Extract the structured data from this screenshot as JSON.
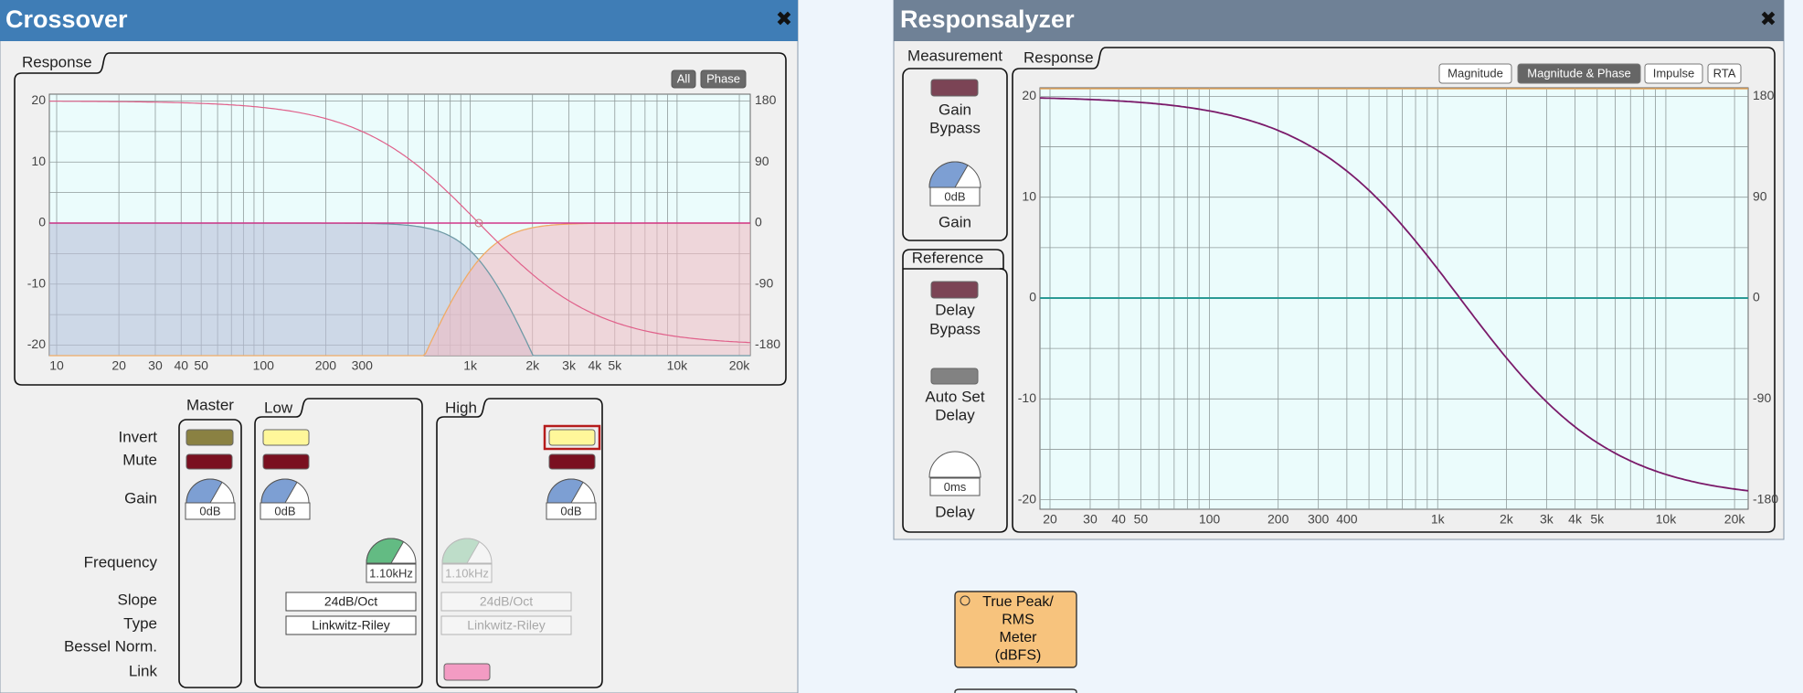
{
  "crossover": {
    "title": "Crossover",
    "close": "✖",
    "response": {
      "label": "Response",
      "buttons": [
        "All",
        "Phase"
      ],
      "y_left": [
        "20",
        "10",
        "0",
        "-10",
        "-20"
      ],
      "y_right": [
        "180",
        "90",
        "0",
        "-90",
        "-180"
      ],
      "x_labels": [
        "10",
        "20",
        "30",
        "40",
        "50",
        "100",
        "200",
        "300",
        "1k",
        "2k",
        "3k",
        "4k",
        "5k",
        "10k",
        "20k"
      ]
    },
    "row_labels": [
      "Invert",
      "Mute",
      "Gain",
      "Frequency",
      "Slope",
      "Type",
      "Bessel Norm.",
      "Link"
    ],
    "master": {
      "label": "Master",
      "gain": "0dB"
    },
    "low": {
      "label": "Low",
      "gain": "0dB",
      "frequency": "1.10kHz",
      "slope": "24dB/Oct",
      "type": "Linkwitz-Riley"
    },
    "high": {
      "label": "High",
      "gain": "0dB",
      "frequency": "1.10kHz",
      "slope": "24dB/Oct",
      "type": "Linkwitz-Riley"
    }
  },
  "responsalyzer": {
    "title": "Responsalyzer",
    "close": "✖",
    "measurement": {
      "label": "Measurement",
      "gain_bypass": [
        "Gain",
        "Bypass"
      ],
      "gain_value": "0dB",
      "gain": "Gain"
    },
    "reference": {
      "label": "Reference",
      "delay_bypass": [
        "Delay",
        "Bypass"
      ],
      "auto_set_delay": [
        "Auto Set",
        "Delay"
      ],
      "delay_value": "0ms",
      "delay": "Delay"
    },
    "response": {
      "label": "Response",
      "tabs": [
        "Magnitude",
        "Magnitude & Phase",
        "Impulse",
        "RTA"
      ],
      "y_left": [
        "20",
        "10",
        "0",
        "-10",
        "-20"
      ],
      "y_right": [
        "180",
        "90",
        "0",
        "-90",
        "-180"
      ],
      "x_labels": [
        "20",
        "30",
        "40",
        "50",
        "100",
        "200",
        "300",
        "400",
        "1k",
        "2k",
        "3k",
        "4k",
        "5k",
        "10k",
        "20k"
      ]
    }
  },
  "meter": {
    "label": [
      "True Peak/",
      "RMS",
      "Meter",
      "(dBFS)"
    ]
  }
}
